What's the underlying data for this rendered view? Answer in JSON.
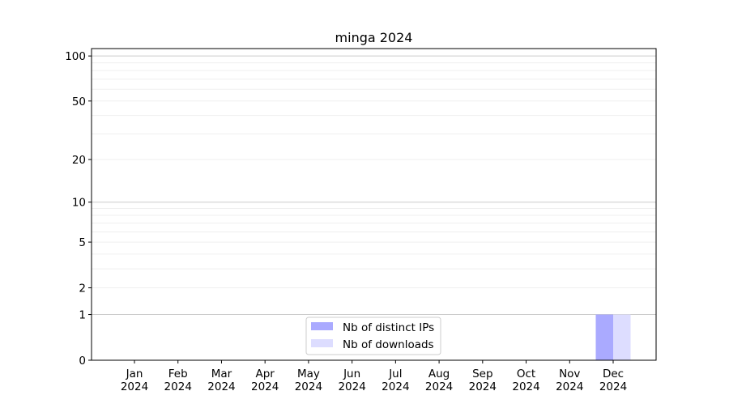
{
  "chart_data": {
    "type": "bar",
    "title": "minga 2024",
    "xlabel": "",
    "ylabel": "",
    "y_scale": "log(1+y)",
    "ylim": [
      0,
      112
    ],
    "y_ticks": [
      0,
      1,
      2,
      5,
      10,
      20,
      50,
      100
    ],
    "grid": "horizontal major and minor",
    "legend_position": "lower-center",
    "categories": [
      "Jan\n2024",
      "Feb\n2024",
      "Mar\n2024",
      "Apr\n2024",
      "May\n2024",
      "Jun\n2024",
      "Jul\n2024",
      "Aug\n2024",
      "Sep\n2024",
      "Oct\n2024",
      "Nov\n2024",
      "Dec\n2024"
    ],
    "series": [
      {
        "name": "Nb of distinct IPs",
        "color": "#aaaaff",
        "values": [
          0,
          0,
          0,
          0,
          0,
          0,
          0,
          0,
          0,
          0,
          0,
          1
        ]
      },
      {
        "name": "Nb of downloads",
        "color": "#ddddff",
        "values": [
          0,
          0,
          0,
          0,
          0,
          0,
          0,
          0,
          0,
          0,
          0,
          1
        ]
      }
    ]
  }
}
